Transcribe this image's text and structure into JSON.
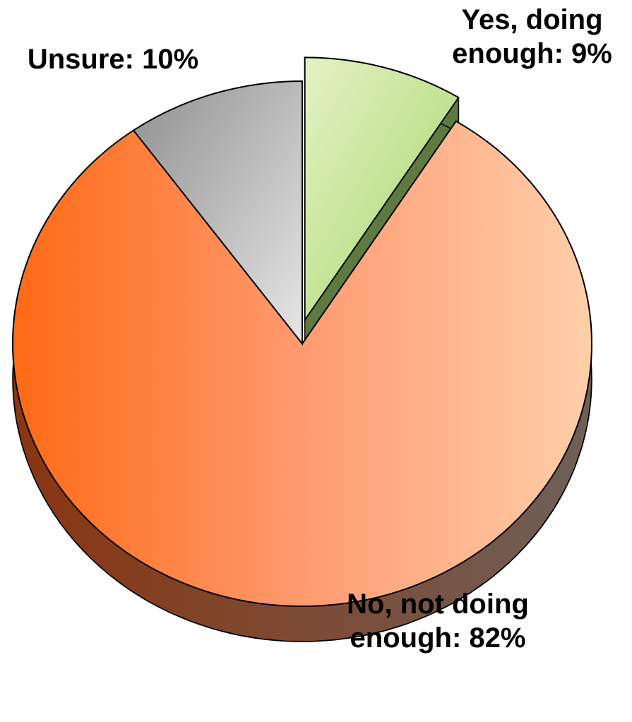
{
  "chart_data": {
    "type": "pie",
    "values": [
      9,
      82,
      10
    ],
    "value_labels": [
      "Yes, doing enough: 9%",
      "No, not doing enough: 82%",
      "Unsure: 10%"
    ],
    "colors": [
      "#b5de86",
      "#ff8f5c",
      "#bdbdbd"
    ],
    "explode": [
      true,
      false,
      false
    ]
  }
}
